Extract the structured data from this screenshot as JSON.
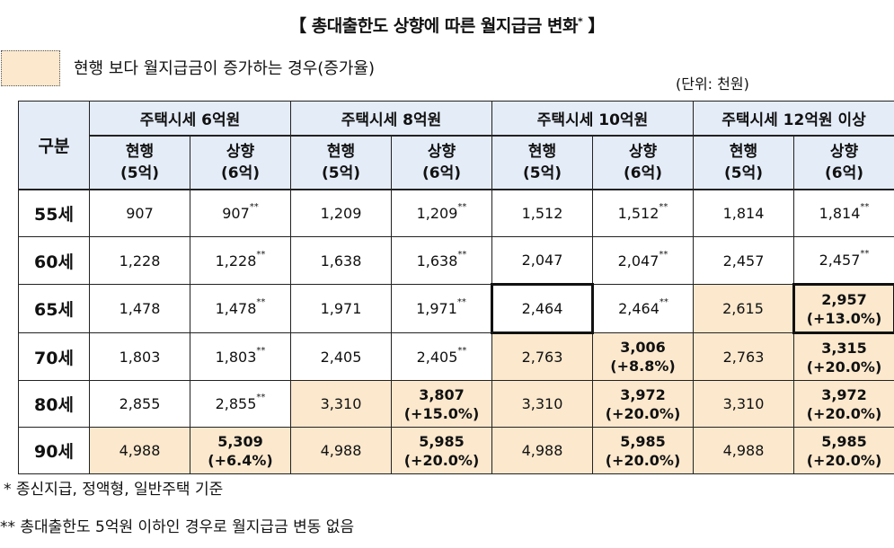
{
  "title": "【 총대출한도 상향에 따른 월지급금 변화",
  "title_mark": "*",
  "title_close": " 】",
  "legend": {
    "text": "현행 보다 월지급금이 증가하는 경우(증가율)",
    "color": "#fbe8cd"
  },
  "unit": "(단위: 천원)",
  "table": {
    "gubun": "구분",
    "groups": [
      "주택시세 6억원",
      "주택시세 8억원",
      "주택시세 10억원",
      "주택시세 12억원 이상"
    ],
    "sub": [
      {
        "l1": "현행",
        "l2": "(5억)"
      },
      {
        "l1": "상향",
        "l2": "(6억)"
      }
    ],
    "rows": [
      {
        "age": "55세",
        "cells": [
          {
            "v": "907"
          },
          {
            "v": "907",
            "ast": "**"
          },
          {
            "v": "1,209"
          },
          {
            "v": "1,209",
            "ast": "**"
          },
          {
            "v": "1,512"
          },
          {
            "v": "1,512",
            "ast": "**"
          },
          {
            "v": "1,814"
          },
          {
            "v": "1,814",
            "ast": "**"
          }
        ]
      },
      {
        "age": "60세",
        "cells": [
          {
            "v": "1,228"
          },
          {
            "v": "1,228",
            "ast": "**"
          },
          {
            "v": "1,638"
          },
          {
            "v": "1,638",
            "ast": "**"
          },
          {
            "v": "2,047"
          },
          {
            "v": "2,047",
            "ast": "**"
          },
          {
            "v": "2,457"
          },
          {
            "v": "2,457",
            "ast": "**"
          }
        ]
      },
      {
        "age": "65세",
        "cells": [
          {
            "v": "1,478"
          },
          {
            "v": "1,478",
            "ast": "**"
          },
          {
            "v": "1,971"
          },
          {
            "v": "1,971",
            "ast": "**"
          },
          {
            "v": "2,464",
            "hl": true
          },
          {
            "v": "2,464",
            "ast": "**"
          },
          {
            "v": "2,615",
            "inc": true
          },
          {
            "v": "2,957",
            "pct": "(+13.0%)",
            "inc": true,
            "hl": true
          }
        ]
      },
      {
        "age": "70세",
        "cells": [
          {
            "v": "1,803"
          },
          {
            "v": "1,803",
            "ast": "**"
          },
          {
            "v": "2,405"
          },
          {
            "v": "2,405",
            "ast": "**"
          },
          {
            "v": "2,763",
            "inc": true
          },
          {
            "v": "3,006",
            "pct": "(+8.8%)",
            "inc": true
          },
          {
            "v": "2,763",
            "inc": true
          },
          {
            "v": "3,315",
            "pct": "(+20.0%)",
            "inc": true
          }
        ]
      },
      {
        "age": "80세",
        "cells": [
          {
            "v": "2,855"
          },
          {
            "v": "2,855",
            "ast": "**"
          },
          {
            "v": "3,310",
            "inc": true
          },
          {
            "v": "3,807",
            "pct": "(+15.0%)",
            "inc": true
          },
          {
            "v": "3,310",
            "inc": true
          },
          {
            "v": "3,972",
            "pct": "(+20.0%)",
            "inc": true
          },
          {
            "v": "3,310",
            "inc": true
          },
          {
            "v": "3,972",
            "pct": "(+20.0%)",
            "inc": true
          }
        ]
      },
      {
        "age": "90세",
        "cells": [
          {
            "v": "4,988",
            "inc": true
          },
          {
            "v": "5,309",
            "pct": "(+6.4%)",
            "inc": true
          },
          {
            "v": "4,988",
            "inc": true
          },
          {
            "v": "5,985",
            "pct": "(+20.0%)",
            "inc": true
          },
          {
            "v": "4,988",
            "inc": true
          },
          {
            "v": "5,985",
            "pct": "(+20.0%)",
            "inc": true
          },
          {
            "v": "4,988",
            "inc": true
          },
          {
            "v": "5,985",
            "pct": "(+20.0%)",
            "inc": true
          }
        ]
      }
    ]
  },
  "notes": [
    "* 종신지급, 정액형, 일반주택 기준",
    "** 총대출한도 5억원 이하인 경우로 월지급금 변동 없음"
  ]
}
